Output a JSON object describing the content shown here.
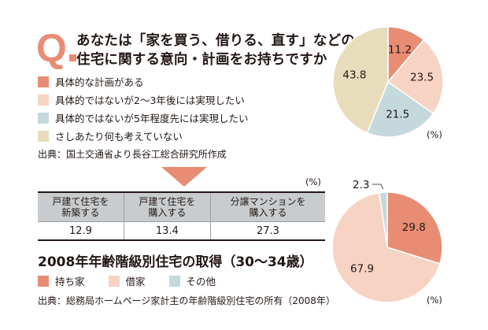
{
  "question": {
    "mark": "Q",
    "line1": "あなたは「家を買う、借りる、直す」などの",
    "line2": "住宅に関する意向・計画をお持ちですか"
  },
  "legend1": [
    {
      "label": "具体的な計画がある",
      "color": "#e88d74"
    },
    {
      "label": "具体的ではないが2〜3年後には実現したい",
      "color": "#f7d3c3"
    },
    {
      "label": "具体的ではないが5年程度先には実現したい",
      "color": "#c5d9dc"
    },
    {
      "label": "さしあたり何も考えていない",
      "color": "#e7dcbc"
    }
  ],
  "source1": "出典：国土交通省より長谷工総合研究所作成",
  "table": {
    "unit": "(%)",
    "headers": [
      "戸建て住宅を\n新築する",
      "戸建て住宅を\n購入する",
      "分譲マンションを\n購入する"
    ],
    "values": [
      "12.9",
      "13.4",
      "27.3"
    ]
  },
  "title2": "2008年年齢階級別住宅の取得（30〜34歳）",
  "legend2": [
    {
      "label": "持ち家",
      "color": "#e88d74"
    },
    {
      "label": "借家",
      "color": "#f7d3c3"
    },
    {
      "label": "その他",
      "color": "#c5d9dc"
    }
  ],
  "source2": "出典：総務局ホームページ家計主の年齢階級別住宅の所有（2008年）",
  "chart_data": [
    {
      "type": "pie",
      "title": "住宅に関する意向・計画",
      "unit": "(%)",
      "slices": [
        {
          "label": "具体的な計画がある",
          "value": 11.2,
          "display": "11.2",
          "color": "#e88d74"
        },
        {
          "label": "具体的ではないが2〜3年後には実現したい",
          "value": 23.5,
          "display": "23.5",
          "color": "#f7d3c3"
        },
        {
          "label": "具体的ではないが5年程度先には実現したい",
          "value": 21.5,
          "display": "21.5",
          "color": "#c5d9dc"
        },
        {
          "label": "さしあたり何も考えていない",
          "value": 43.8,
          "display": "43.8",
          "color": "#e7dcbc"
        }
      ]
    },
    {
      "type": "pie",
      "title": "2008年年齢階級別住宅の取得（30〜34歳）",
      "unit": "(%)",
      "slices": [
        {
          "label": "持ち家",
          "value": 29.8,
          "display": "29.8",
          "color": "#e88d74"
        },
        {
          "label": "借家",
          "value": 67.9,
          "display": "67.9",
          "color": "#f7d3c3"
        },
        {
          "label": "その他",
          "value": 2.3,
          "display": "2.3",
          "color": "#c5d9dc"
        }
      ]
    }
  ]
}
